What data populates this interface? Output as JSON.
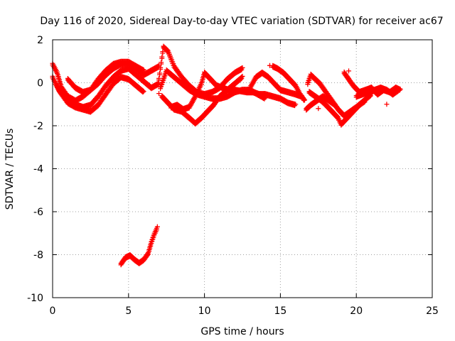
{
  "chart_data": {
    "type": "scatter",
    "title": "Day 116 of 2020, Sidereal Day-to-day VTEC variation (SDTVAR) for receiver ac67",
    "xlabel": "GPS time / hours",
    "ylabel": "SDTVAR / TECUs",
    "xlim": [
      0,
      25
    ],
    "ylim": [
      -10,
      2
    ],
    "xticks": [
      0,
      5,
      10,
      15,
      20,
      25
    ],
    "yticks": [
      2,
      0,
      -2,
      -4,
      -6,
      -8,
      -10
    ],
    "grid": true,
    "marker": "+",
    "color": "#ff0000",
    "series": [
      {
        "name": "track-1",
        "points": [
          [
            0.0,
            0.9
          ],
          [
            0.3,
            0.5
          ],
          [
            0.6,
            -0.2
          ],
          [
            1.0,
            -0.6
          ],
          [
            1.5,
            -0.8
          ],
          [
            2.0,
            -0.6
          ],
          [
            2.5,
            -0.3
          ],
          [
            3.0,
            0.0
          ],
          [
            3.5,
            0.4
          ],
          [
            4.0,
            0.7
          ],
          [
            4.5,
            0.9
          ],
          [
            5.0,
            0.9
          ],
          [
            5.5,
            0.7
          ],
          [
            6.0,
            0.4
          ],
          [
            6.5,
            0.6
          ],
          [
            7.0,
            0.8
          ]
        ]
      },
      {
        "name": "track-2",
        "points": [
          [
            0.0,
            0.3
          ],
          [
            0.4,
            -0.3
          ],
          [
            0.8,
            -0.7
          ],
          [
            1.2,
            -0.9
          ],
          [
            1.6,
            -1.0
          ],
          [
            2.0,
            -1.1
          ],
          [
            2.5,
            -1.0
          ],
          [
            3.0,
            -0.6
          ],
          [
            3.5,
            -0.1
          ],
          [
            4.0,
            0.3
          ],
          [
            4.5,
            0.6
          ],
          [
            5.0,
            0.7
          ],
          [
            5.5,
            0.4
          ],
          [
            6.0,
            0.1
          ],
          [
            6.5,
            -0.2
          ],
          [
            7.0,
            0.0
          ]
        ]
      },
      {
        "name": "track-3",
        "points": [
          [
            0.2,
            0.0
          ],
          [
            0.6,
            -0.5
          ],
          [
            1.0,
            -0.9
          ],
          [
            1.5,
            -1.1
          ],
          [
            2.0,
            -1.2
          ],
          [
            2.5,
            -1.3
          ],
          [
            3.0,
            -1.0
          ],
          [
            3.5,
            -0.5
          ],
          [
            4.0,
            0.0
          ],
          [
            4.5,
            0.3
          ],
          [
            5.0,
            0.2
          ],
          [
            5.5,
            -0.1
          ],
          [
            6.0,
            -0.4
          ]
        ]
      },
      {
        "name": "track-4",
        "points": [
          [
            1.0,
            0.2
          ],
          [
            1.5,
            -0.2
          ],
          [
            2.0,
            -0.4
          ],
          [
            2.5,
            -0.3
          ],
          [
            3.0,
            0.2
          ],
          [
            3.5,
            0.6
          ],
          [
            4.0,
            0.9
          ],
          [
            4.5,
            1.0
          ],
          [
            5.0,
            1.0
          ],
          [
            5.5,
            0.8
          ],
          [
            6.0,
            0.6
          ]
        ]
      },
      {
        "name": "track-5",
        "points": [
          [
            7.0,
            0.2
          ],
          [
            7.3,
            1.7
          ],
          [
            7.6,
            1.5
          ],
          [
            8.0,
            0.8
          ],
          [
            8.5,
            0.3
          ],
          [
            9.0,
            -0.1
          ],
          [
            9.5,
            -0.4
          ],
          [
            10.0,
            -0.5
          ],
          [
            10.5,
            -0.4
          ],
          [
            11.0,
            -0.2
          ],
          [
            11.5,
            0.2
          ],
          [
            12.0,
            0.5
          ],
          [
            12.5,
            0.7
          ]
        ]
      },
      {
        "name": "track-6",
        "points": [
          [
            7.1,
            -0.2
          ],
          [
            7.5,
            0.6
          ],
          [
            8.0,
            0.3
          ],
          [
            8.5,
            0.0
          ],
          [
            9.0,
            -0.3
          ],
          [
            9.5,
            -0.5
          ],
          [
            10.0,
            -0.6
          ],
          [
            10.5,
            -0.7
          ],
          [
            11.0,
            -0.7
          ],
          [
            11.5,
            -0.6
          ],
          [
            12.0,
            -0.4
          ],
          [
            12.5,
            -0.3
          ],
          [
            13.0,
            -0.3
          ],
          [
            13.5,
            -0.5
          ],
          [
            14.0,
            -0.7
          ]
        ]
      },
      {
        "name": "track-7",
        "points": [
          [
            7.2,
            -0.6
          ],
          [
            7.6,
            -0.9
          ],
          [
            8.0,
            -1.2
          ],
          [
            8.5,
            -1.3
          ],
          [
            9.0,
            -1.6
          ],
          [
            9.4,
            -1.85
          ],
          [
            9.8,
            -1.6
          ],
          [
            10.2,
            -1.3
          ],
          [
            10.6,
            -1.0
          ],
          [
            11.0,
            -0.6
          ],
          [
            11.5,
            -0.3
          ],
          [
            12.0,
            0.0
          ],
          [
            12.5,
            0.3
          ]
        ]
      },
      {
        "name": "track-8",
        "points": [
          [
            7.8,
            -1.1
          ],
          [
            8.2,
            -1.0
          ],
          [
            8.6,
            -1.2
          ],
          [
            9.0,
            -1.1
          ],
          [
            9.4,
            -0.6
          ],
          [
            9.8,
            0.0
          ],
          [
            10.0,
            0.5
          ],
          [
            10.4,
            0.2
          ],
          [
            10.8,
            -0.1
          ],
          [
            11.2,
            -0.2
          ],
          [
            11.6,
            -0.3
          ],
          [
            12.0,
            -0.3
          ],
          [
            12.4,
            -0.35
          ],
          [
            12.8,
            -0.4
          ],
          [
            13.2,
            -0.4
          ],
          [
            13.6,
            -0.5
          ],
          [
            14.0,
            -0.5
          ],
          [
            14.5,
            -0.6
          ],
          [
            15.0,
            -0.7
          ],
          [
            15.5,
            -0.9
          ],
          [
            16.0,
            -1.0
          ]
        ]
      },
      {
        "name": "track-9",
        "points": [
          [
            13.0,
            -0.2
          ],
          [
            13.4,
            0.3
          ],
          [
            13.8,
            0.5
          ],
          [
            14.2,
            0.3
          ],
          [
            14.6,
            0.0
          ],
          [
            15.0,
            -0.3
          ],
          [
            15.5,
            -0.4
          ],
          [
            16.0,
            -0.5
          ],
          [
            16.4,
            -0.6
          ]
        ]
      },
      {
        "name": "track-10",
        "points": [
          [
            14.5,
            0.8
          ],
          [
            14.8,
            0.7
          ],
          [
            15.2,
            0.5
          ],
          [
            15.6,
            0.2
          ],
          [
            16.0,
            -0.1
          ],
          [
            16.3,
            -0.5
          ],
          [
            16.6,
            -0.8
          ]
        ]
      },
      {
        "name": "track-11",
        "points": [
          [
            16.8,
            0.0
          ],
          [
            17.0,
            0.4
          ],
          [
            17.3,
            0.2
          ],
          [
            17.6,
            0.0
          ],
          [
            18.0,
            -0.4
          ],
          [
            18.4,
            -0.8
          ],
          [
            18.8,
            -1.2
          ],
          [
            19.2,
            -1.5
          ],
          [
            19.6,
            -1.3
          ],
          [
            20.0,
            -1.1
          ],
          [
            20.5,
            -0.8
          ],
          [
            21.0,
            -0.5
          ]
        ]
      },
      {
        "name": "track-12",
        "points": [
          [
            16.9,
            -0.4
          ],
          [
            17.3,
            -0.6
          ],
          [
            17.7,
            -0.8
          ],
          [
            18.0,
            -1.0
          ],
          [
            18.4,
            -1.3
          ],
          [
            18.8,
            -1.6
          ],
          [
            19.0,
            -1.9
          ],
          [
            19.4,
            -1.6
          ],
          [
            19.8,
            -1.3
          ],
          [
            20.2,
            -1.0
          ],
          [
            20.6,
            -0.8
          ]
        ]
      },
      {
        "name": "track-13",
        "points": [
          [
            16.7,
            -1.2
          ],
          [
            17.0,
            -1.0
          ],
          [
            17.4,
            -0.8
          ],
          [
            17.8,
            -0.6
          ],
          [
            18.2,
            -0.8
          ],
          [
            18.6,
            -1.0
          ]
        ]
      },
      {
        "name": "track-14",
        "points": [
          [
            19.2,
            0.5
          ],
          [
            19.5,
            0.2
          ],
          [
            19.8,
            -0.1
          ],
          [
            20.2,
            -0.4
          ],
          [
            20.6,
            -0.3
          ],
          [
            21.0,
            -0.2
          ],
          [
            21.4,
            -0.5
          ],
          [
            21.8,
            -0.3
          ],
          [
            22.2,
            -0.4
          ],
          [
            22.6,
            -0.2
          ],
          [
            22.9,
            -0.3
          ]
        ]
      },
      {
        "name": "track-15",
        "points": [
          [
            20.0,
            -0.6
          ],
          [
            20.4,
            -0.5
          ],
          [
            20.8,
            -0.4
          ],
          [
            21.2,
            -0.3
          ],
          [
            21.6,
            -0.2
          ],
          [
            22.0,
            -0.3
          ],
          [
            22.4,
            -0.5
          ],
          [
            22.8,
            -0.3
          ]
        ]
      },
      {
        "name": "track-16",
        "points": [
          [
            4.5,
            -8.4
          ],
          [
            4.8,
            -8.1
          ],
          [
            5.1,
            -8.0
          ],
          [
            5.4,
            -8.2
          ],
          [
            5.7,
            -8.35
          ],
          [
            6.0,
            -8.2
          ],
          [
            6.3,
            -7.9
          ],
          [
            6.5,
            -7.4
          ],
          [
            6.7,
            -7.0
          ],
          [
            6.9,
            -6.7
          ]
        ]
      }
    ],
    "outliers": [
      [
        19.5,
        0.55
      ],
      [
        22.0,
        -1.0
      ],
      [
        7.0,
        -0.5
      ],
      [
        17.5,
        -1.2
      ],
      [
        14.3,
        0.8
      ]
    ]
  }
}
